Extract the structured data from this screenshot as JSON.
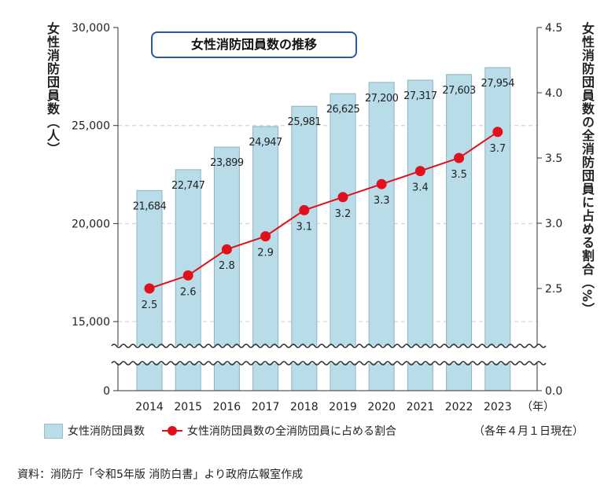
{
  "chart_data": {
    "type": "bar+line",
    "title": "女性消防団員数の推移",
    "categories": [
      "2014",
      "2015",
      "2016",
      "2017",
      "2018",
      "2019",
      "2020",
      "2021",
      "2022",
      "2023"
    ],
    "x_unit": "（年）",
    "series": [
      {
        "name": "女性消防団員数",
        "type": "bar",
        "axis": "left",
        "values": [
          21684,
          22747,
          23899,
          24947,
          25981,
          26625,
          27200,
          27317,
          27603,
          27954
        ],
        "labels": [
          "21,684",
          "22,747",
          "23,899",
          "24,947",
          "25,981",
          "26,625",
          "27,200",
          "27,317",
          "27,603",
          "27,954"
        ],
        "color": "#b8dde9"
      },
      {
        "name": "女性消防団員数の全消防団員に占める割合",
        "type": "line",
        "axis": "right",
        "values": [
          2.5,
          2.6,
          2.8,
          2.9,
          3.1,
          3.2,
          3.3,
          3.4,
          3.5,
          3.7
        ],
        "labels": [
          "2.5",
          "2.6",
          "2.8",
          "2.9",
          "3.1",
          "3.2",
          "3.3",
          "3.4",
          "3.5",
          "3.7"
        ],
        "color": "#e0101c"
      }
    ],
    "left_axis": {
      "label": "女性消防団員数（人）",
      "ticks": [
        "30,000",
        "25,000",
        "20,000",
        "15,000",
        "0"
      ],
      "tick_values": [
        30000,
        25000,
        20000,
        15000,
        0
      ],
      "range": [
        15000,
        30000
      ],
      "broken": true
    },
    "right_axis": {
      "label": "女性消防団員数の全消防団員に占める割合（%）",
      "ticks": [
        "4.5",
        "4.0",
        "3.5",
        "3.0",
        "2.5",
        "0.0"
      ],
      "tick_values": [
        4.5,
        4.0,
        3.5,
        3.0,
        2.5,
        0.0
      ],
      "range": [
        2.0,
        4.5
      ],
      "broken": true
    },
    "grid": "dashed horizontal",
    "legend": "bottom",
    "note": "（各年４月１日現在）"
  },
  "source": "資料：消防庁「令和5年版 消防白書」より政府広報室作成"
}
